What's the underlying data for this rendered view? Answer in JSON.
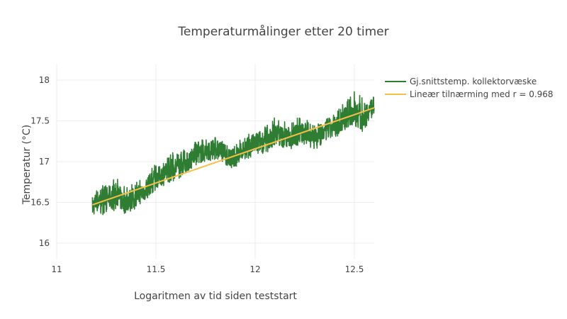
{
  "chart_data": {
    "type": "line",
    "title": "Temperaturmålinger etter 20 timer",
    "xlabel": "Logaritmen av tid siden teststart",
    "ylabel": "Temperatur (°C)",
    "xlim": [
      11,
      12.6
    ],
    "ylim": [
      15.8,
      18.2
    ],
    "x_ticks": [
      11,
      11.5,
      12,
      12.5
    ],
    "x_tick_labels": [
      "11",
      "11.5",
      "12",
      "12.5"
    ],
    "y_ticks": [
      16,
      16.5,
      17,
      17.5,
      18
    ],
    "y_tick_labels": [
      "16",
      "16.5",
      "17",
      "17.5",
      "18"
    ],
    "grid": true,
    "legend_position": "top-right outside",
    "series": [
      {
        "name": "Gj.snittstemp. kollektorvæske",
        "color": "#2e7d32",
        "x": [
          11.18,
          11.22,
          11.26,
          11.3,
          11.34,
          11.38,
          11.42,
          11.46,
          11.5,
          11.54,
          11.58,
          11.62,
          11.66,
          11.7,
          11.74,
          11.78,
          11.82,
          11.86,
          11.9,
          11.94,
          11.98,
          12.02,
          12.06,
          12.1,
          12.14,
          12.18,
          12.22,
          12.26,
          12.3,
          12.34,
          12.38,
          12.42,
          12.46,
          12.5,
          12.54,
          12.58,
          12.6
        ],
        "y": [
          16.45,
          16.55,
          16.55,
          16.6,
          16.5,
          16.55,
          16.6,
          16.7,
          16.8,
          16.85,
          16.9,
          16.95,
          17.0,
          17.1,
          17.1,
          17.15,
          17.15,
          17.05,
          17.05,
          17.15,
          17.2,
          17.25,
          17.25,
          17.35,
          17.3,
          17.3,
          17.35,
          17.35,
          17.3,
          17.35,
          17.4,
          17.45,
          17.55,
          17.6,
          17.55,
          17.65,
          17.7
        ],
        "y_min": [
          16.27,
          16.35,
          16.35,
          16.42,
          16.32,
          16.4,
          16.45,
          16.55,
          16.65,
          16.7,
          16.75,
          16.8,
          16.88,
          16.95,
          16.98,
          17.0,
          17.0,
          16.92,
          16.93,
          17.0,
          17.05,
          17.1,
          17.1,
          17.2,
          17.15,
          17.15,
          17.2,
          17.2,
          17.15,
          17.2,
          17.25,
          17.3,
          17.4,
          17.45,
          17.37,
          17.5,
          17.55
        ],
        "y_max": [
          16.6,
          16.7,
          16.75,
          16.8,
          16.7,
          16.72,
          16.78,
          16.9,
          16.98,
          17.0,
          17.12,
          17.1,
          17.2,
          17.25,
          17.28,
          17.3,
          17.3,
          17.2,
          17.22,
          17.3,
          17.38,
          17.45,
          17.45,
          17.55,
          17.5,
          17.48,
          17.55,
          17.52,
          17.45,
          17.5,
          17.58,
          17.65,
          17.75,
          17.88,
          17.78,
          17.8,
          17.82
        ]
      },
      {
        "name": "Lineær tilnærming med r = 0.968",
        "color": "#f5c04a",
        "x": [
          11.18,
          12.6
        ],
        "y": [
          16.47,
          17.66
        ]
      }
    ]
  }
}
